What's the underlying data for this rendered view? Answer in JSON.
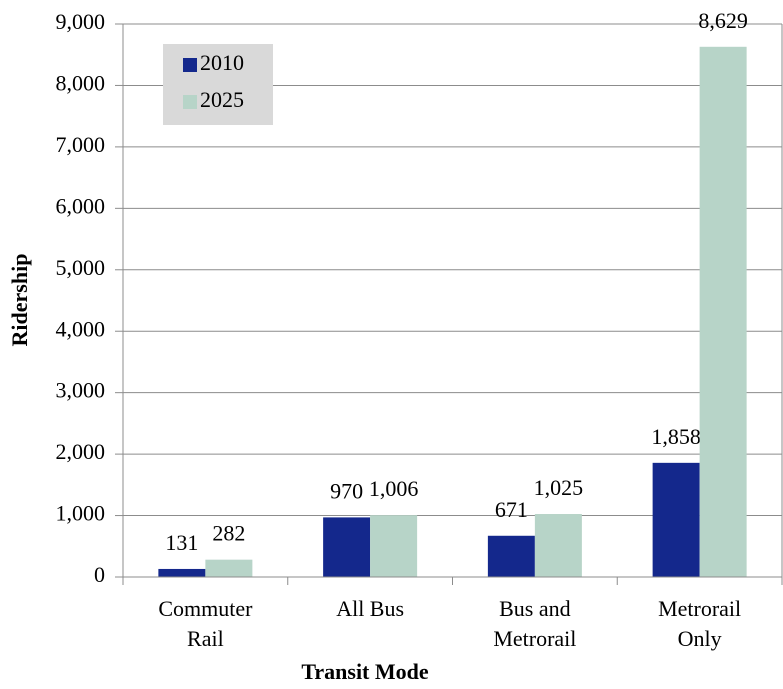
{
  "chart_data": {
    "type": "bar",
    "categories": [
      "Commuter Rail",
      "All Bus",
      "Bus and Metrorail",
      "Metrorail Only"
    ],
    "series": [
      {
        "name": "2010",
        "color": "#14288c",
        "values": [
          131,
          970,
          671,
          1858
        ],
        "value_labels": [
          "131",
          "970",
          "671",
          "1,858"
        ]
      },
      {
        "name": "2025",
        "color": "#b7d4c8",
        "values": [
          282,
          1006,
          1025,
          8629
        ],
        "value_labels": [
          "282",
          "1,006",
          "1,025",
          "8,629"
        ]
      }
    ],
    "x_label": "Transit Mode",
    "y_label": "Ridership",
    "ylim": [
      0,
      9000
    ],
    "yticks": [
      0,
      {
        "value": 1000,
        "label": "1,000"
      },
      {
        "value": 2000,
        "label": "2,000"
      },
      {
        "value": 3000,
        "label": "3,000"
      },
      {
        "value": 4000,
        "label": "4,000"
      },
      {
        "value": 5000,
        "label": "5,000"
      },
      {
        "value": 6000,
        "label": "6,000"
      },
      {
        "value": 7000,
        "label": "7,000"
      },
      {
        "value": 8000,
        "label": "8,000"
      },
      {
        "value": 9000,
        "label": "9,000"
      }
    ],
    "grid": true,
    "legend": "upper left"
  }
}
